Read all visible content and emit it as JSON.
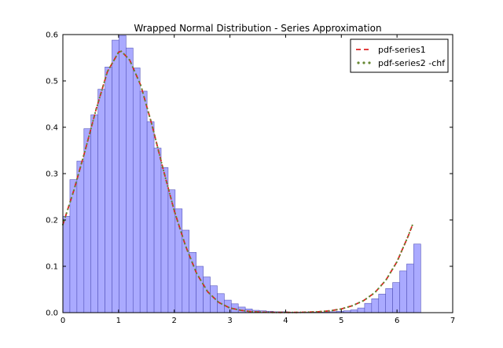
{
  "chart_data": {
    "type": "bar",
    "title": "Wrapped Normal Distribution - Series Approximation",
    "xlabel": "",
    "ylabel": "",
    "xlim": [
      0,
      7
    ],
    "ylim": [
      0,
      0.6
    ],
    "x_ticks": [
      "0",
      "1",
      "2",
      "3",
      "4",
      "5",
      "6",
      "7"
    ],
    "y_ticks": [
      "0.0",
      "0.1",
      "0.2",
      "0.3",
      "0.4",
      "0.5",
      "0.6"
    ],
    "grid": false,
    "legend": "top-right",
    "histogram": {
      "bin_width": 0.126,
      "bin_start": 0,
      "color": "#aaaaff",
      "edge_color": "#5555bb",
      "values": [
        0.208,
        0.287,
        0.327,
        0.397,
        0.427,
        0.482,
        0.53,
        0.588,
        0.598,
        0.571,
        0.528,
        0.478,
        0.412,
        0.355,
        0.313,
        0.265,
        0.224,
        0.178,
        0.13,
        0.1,
        0.077,
        0.058,
        0.041,
        0.027,
        0.019,
        0.012,
        0.008,
        0.005,
        0.004,
        0.003,
        0.002,
        0.002,
        0.001,
        0.001,
        0.001,
        0.001,
        0.001,
        0.001,
        0.002,
        0.003,
        0.004,
        0.006,
        0.01,
        0.02,
        0.03,
        0.04,
        0.052,
        0.065,
        0.09,
        0.105,
        0.148
      ]
    },
    "series": [
      {
        "name": "pdf-series1",
        "style": "dashed",
        "color": "#dd2222",
        "x": [
          0,
          0.2,
          0.4,
          0.6,
          0.8,
          1.0,
          1.05,
          1.2,
          1.4,
          1.6,
          1.8,
          2.0,
          2.2,
          2.4,
          2.6,
          2.8,
          3.0,
          3.2,
          3.4,
          3.6,
          3.8,
          4.0,
          4.2,
          4.4,
          4.6,
          4.8,
          5.0,
          5.2,
          5.4,
          5.6,
          5.8,
          6.0,
          6.2,
          6.28
        ],
        "y": [
          0.19,
          0.265,
          0.35,
          0.44,
          0.52,
          0.562,
          0.564,
          0.545,
          0.49,
          0.405,
          0.31,
          0.22,
          0.145,
          0.085,
          0.045,
          0.022,
          0.01,
          0.005,
          0.002,
          0.001,
          0.0005,
          0.0005,
          0.0005,
          0.001,
          0.002,
          0.004,
          0.008,
          0.015,
          0.026,
          0.043,
          0.07,
          0.11,
          0.165,
          0.19
        ]
      },
      {
        "name": "pdf-series2 -chf",
        "style": "dotted",
        "color": "#668833",
        "x": [
          0,
          0.2,
          0.4,
          0.6,
          0.8,
          1.0,
          1.05,
          1.2,
          1.4,
          1.6,
          1.8,
          2.0,
          2.2,
          2.4,
          2.6,
          2.8,
          3.0,
          3.2,
          3.4,
          3.6,
          3.8,
          4.0,
          4.2,
          4.4,
          4.6,
          4.8,
          5.0,
          5.2,
          5.4,
          5.6,
          5.8,
          6.0,
          6.2,
          6.28
        ],
        "y": [
          0.19,
          0.265,
          0.35,
          0.44,
          0.52,
          0.562,
          0.564,
          0.545,
          0.49,
          0.405,
          0.31,
          0.22,
          0.145,
          0.085,
          0.045,
          0.022,
          0.01,
          0.005,
          0.002,
          0.001,
          0.0005,
          0.0005,
          0.0005,
          0.001,
          0.002,
          0.004,
          0.008,
          0.015,
          0.026,
          0.043,
          0.07,
          0.11,
          0.165,
          0.19
        ]
      }
    ]
  }
}
